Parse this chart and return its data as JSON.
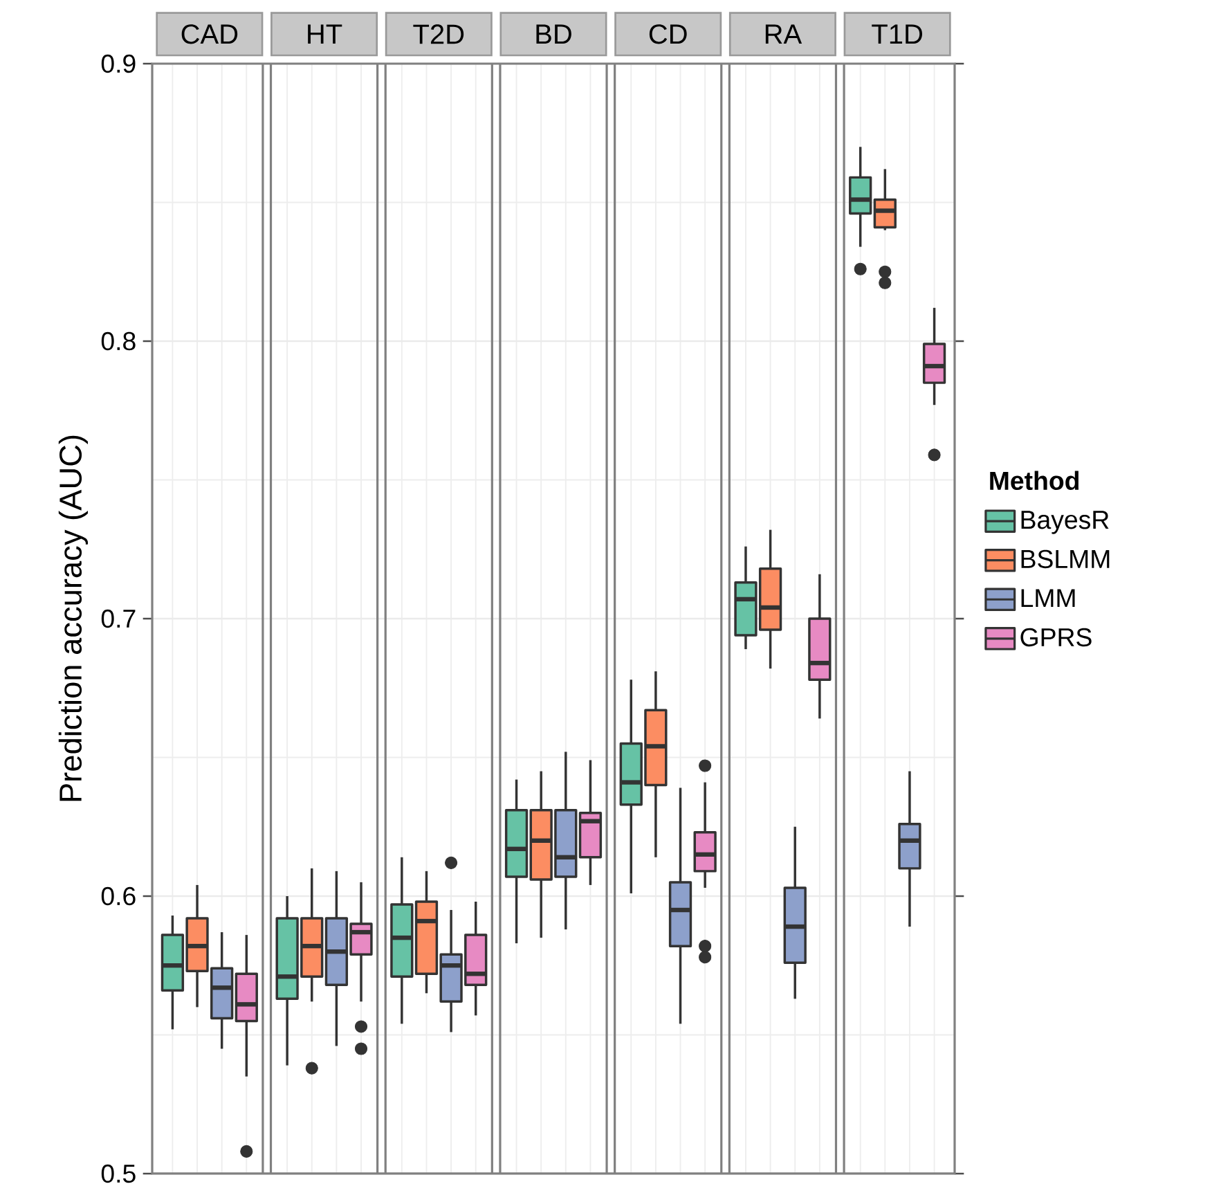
{
  "chart_data": {
    "type": "box",
    "ylabel": "Prediction accuracy (AUC)",
    "categories": [
      "CAD",
      "HT",
      "T2D",
      "BD",
      "CD",
      "RA",
      "T1D"
    ],
    "ylim": [
      0.5,
      0.9
    ],
    "yticks": [
      0.5,
      0.6,
      0.7,
      0.8,
      0.9
    ],
    "grid": true,
    "legend": "right",
    "legend_title": "Method",
    "series": [
      {
        "name": "BayesR",
        "color": "#66c2a5",
        "boxes": [
          {
            "low": 0.552,
            "q1": 0.566,
            "median": 0.575,
            "q3": 0.586,
            "high": 0.593
          },
          {
            "low": 0.539,
            "q1": 0.563,
            "median": 0.571,
            "q3": 0.592,
            "high": 0.6
          },
          {
            "low": 0.554,
            "q1": 0.571,
            "median": 0.585,
            "q3": 0.597,
            "high": 0.614
          },
          {
            "low": 0.583,
            "q1": 0.607,
            "median": 0.617,
            "q3": 0.631,
            "high": 0.642
          },
          {
            "low": 0.601,
            "q1": 0.633,
            "median": 0.641,
            "q3": 0.655,
            "high": 0.678
          },
          {
            "low": 0.689,
            "q1": 0.694,
            "median": 0.707,
            "q3": 0.713,
            "high": 0.726
          },
          {
            "low": 0.834,
            "q1": 0.846,
            "median": 0.851,
            "q3": 0.859,
            "high": 0.87,
            "outliers": [
              0.826
            ]
          }
        ]
      },
      {
        "name": "BSLMM",
        "color": "#fc8d62",
        "boxes": [
          {
            "low": 0.56,
            "q1": 0.573,
            "median": 0.582,
            "q3": 0.592,
            "high": 0.604
          },
          {
            "low": 0.562,
            "q1": 0.571,
            "median": 0.582,
            "q3": 0.592,
            "high": 0.61,
            "outliers": [
              0.538
            ]
          },
          {
            "low": 0.565,
            "q1": 0.572,
            "median": 0.591,
            "q3": 0.598,
            "high": 0.609
          },
          {
            "low": 0.585,
            "q1": 0.606,
            "median": 0.62,
            "q3": 0.631,
            "high": 0.645
          },
          {
            "low": 0.614,
            "q1": 0.64,
            "median": 0.654,
            "q3": 0.667,
            "high": 0.681
          },
          {
            "low": 0.682,
            "q1": 0.696,
            "median": 0.704,
            "q3": 0.718,
            "high": 0.732
          },
          {
            "low": 0.84,
            "q1": 0.841,
            "median": 0.847,
            "q3": 0.851,
            "high": 0.862,
            "outliers": [
              0.825,
              0.821
            ]
          }
        ]
      },
      {
        "name": "LMM",
        "color": "#8da0cb",
        "boxes": [
          {
            "low": 0.545,
            "q1": 0.556,
            "median": 0.567,
            "q3": 0.574,
            "high": 0.587
          },
          {
            "low": 0.546,
            "q1": 0.568,
            "median": 0.58,
            "q3": 0.592,
            "high": 0.609
          },
          {
            "low": 0.551,
            "q1": 0.562,
            "median": 0.575,
            "q3": 0.579,
            "high": 0.595,
            "outliers": [
              0.612
            ]
          },
          {
            "low": 0.588,
            "q1": 0.607,
            "median": 0.614,
            "q3": 0.631,
            "high": 0.652
          },
          {
            "low": 0.554,
            "q1": 0.582,
            "median": 0.595,
            "q3": 0.605,
            "high": 0.639
          },
          {
            "low": 0.563,
            "q1": 0.576,
            "median": 0.589,
            "q3": 0.603,
            "high": 0.625
          },
          {
            "low": 0.589,
            "q1": 0.61,
            "median": 0.62,
            "q3": 0.626,
            "high": 0.645
          }
        ]
      },
      {
        "name": "GPRS",
        "color": "#e78ac3",
        "boxes": [
          {
            "low": 0.535,
            "q1": 0.555,
            "median": 0.561,
            "q3": 0.572,
            "high": 0.586,
            "outliers": [
              0.508
            ]
          },
          {
            "low": 0.562,
            "q1": 0.579,
            "median": 0.587,
            "q3": 0.59,
            "high": 0.605,
            "outliers": [
              0.553,
              0.545
            ]
          },
          {
            "low": 0.557,
            "q1": 0.568,
            "median": 0.572,
            "q3": 0.586,
            "high": 0.598
          },
          {
            "low": 0.604,
            "q1": 0.614,
            "median": 0.627,
            "q3": 0.63,
            "high": 0.649
          },
          {
            "low": 0.603,
            "q1": 0.609,
            "median": 0.615,
            "q3": 0.623,
            "high": 0.641,
            "outliers": [
              0.647,
              0.582,
              0.578
            ]
          },
          {
            "low": 0.664,
            "q1": 0.678,
            "median": 0.684,
            "q3": 0.7,
            "high": 0.716
          },
          {
            "low": 0.777,
            "q1": 0.785,
            "median": 0.791,
            "q3": 0.799,
            "high": 0.812,
            "outliers": [
              0.759
            ]
          }
        ]
      }
    ]
  }
}
